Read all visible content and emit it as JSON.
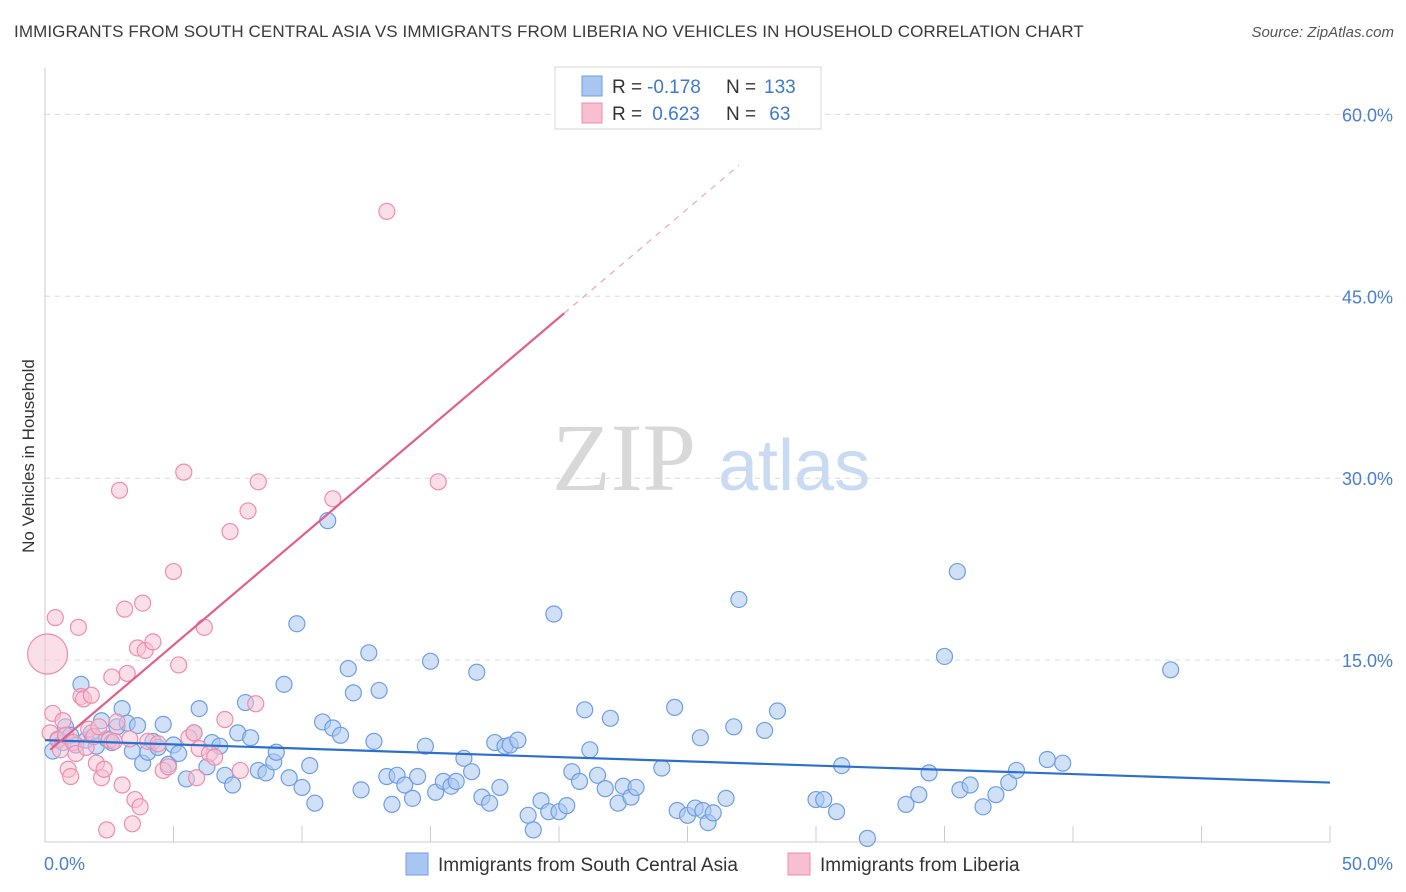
{
  "title": "IMMIGRANTS FROM SOUTH CENTRAL ASIA VS IMMIGRANTS FROM LIBERIA NO VEHICLES IN HOUSEHOLD CORRELATION CHART",
  "source": "Source: ZipAtlas.com",
  "watermark": {
    "zip": "ZIP",
    "atlas": "atlas"
  },
  "legend_top": [
    {
      "r_label": "R = ",
      "r_value": "-0.178",
      "n_label": "N = ",
      "n_value": "133"
    },
    {
      "r_label": "R = ",
      "r_value": " 0.623",
      "n_label": "N = ",
      "n_value": " 63"
    }
  ],
  "colors": {
    "blue": "#6d9ee6",
    "blue_fill": "#a9c6f0",
    "blue_line": "#2d6fce",
    "pink": "#f08cab",
    "pink_fill": "#f7bfd1",
    "pink_line": "#e0608a"
  },
  "chart_data": {
    "type": "scatter",
    "title": "IMMIGRANTS FROM SOUTH CENTRAL ASIA VS IMMIGRANTS FROM LIBERIA NO VEHICLES IN HOUSEHOLD CORRELATION CHART",
    "xlabel": "",
    "ylabel": "No Vehicles in Household",
    "xlim": [
      0,
      50
    ],
    "ylim": [
      0,
      63
    ],
    "x_tick_labels": [
      "0.0%",
      "50.0%"
    ],
    "y_ticks": [
      15,
      30,
      45,
      60
    ],
    "y_tick_labels": [
      "15.0%",
      "30.0%",
      "45.0%",
      "60.0%"
    ],
    "grid": true,
    "legend_placement": "top-center",
    "series": [
      {
        "name": "Immigrants from South Central Asia",
        "color": "#6d9ee6",
        "trend": {
          "x": [
            0,
            50
          ],
          "y": [
            8.4,
            4.9
          ]
        },
        "points": [
          [
            0.3,
            7.5
          ],
          [
            0.5,
            8.5
          ],
          [
            0.7,
            8.2
          ],
          [
            0.8,
            9.5
          ],
          [
            1.0,
            8.8
          ],
          [
            1.2,
            8.0
          ],
          [
            1.4,
            13.0
          ],
          [
            1.6,
            8.4
          ],
          [
            1.8,
            9.0
          ],
          [
            2.0,
            7.9
          ],
          [
            2.2,
            10.0
          ],
          [
            2.4,
            8.5
          ],
          [
            2.6,
            8.2
          ],
          [
            2.8,
            9.5
          ],
          [
            3.0,
            11.0
          ],
          [
            3.2,
            9.8
          ],
          [
            3.4,
            7.5
          ],
          [
            3.6,
            9.6
          ],
          [
            3.8,
            6.5
          ],
          [
            4.0,
            7.4
          ],
          [
            4.2,
            8.3
          ],
          [
            4.4,
            7.8
          ],
          [
            4.6,
            9.7
          ],
          [
            4.8,
            6.4
          ],
          [
            5.0,
            8.0
          ],
          [
            5.2,
            7.3
          ],
          [
            5.5,
            5.2
          ],
          [
            5.8,
            9.0
          ],
          [
            6.0,
            11.0
          ],
          [
            6.3,
            6.2
          ],
          [
            6.5,
            8.2
          ],
          [
            6.8,
            7.9
          ],
          [
            7.0,
            5.5
          ],
          [
            7.3,
            4.7
          ],
          [
            7.5,
            9.0
          ],
          [
            7.8,
            11.5
          ],
          [
            8.0,
            8.6
          ],
          [
            8.3,
            5.9
          ],
          [
            8.6,
            5.7
          ],
          [
            8.9,
            6.6
          ],
          [
            9.0,
            7.4
          ],
          [
            9.3,
            13.0
          ],
          [
            9.5,
            5.3
          ],
          [
            9.8,
            18.0
          ],
          [
            10.0,
            4.5
          ],
          [
            10.3,
            6.3
          ],
          [
            10.5,
            3.2
          ],
          [
            10.8,
            9.9
          ],
          [
            11.0,
            26.5
          ],
          [
            11.2,
            9.4
          ],
          [
            11.5,
            8.8
          ],
          [
            11.8,
            14.3
          ],
          [
            12.0,
            12.3
          ],
          [
            12.3,
            4.3
          ],
          [
            12.6,
            15.6
          ],
          [
            12.8,
            8.3
          ],
          [
            13.0,
            12.5
          ],
          [
            13.3,
            5.4
          ],
          [
            13.5,
            3.1
          ],
          [
            13.7,
            5.5
          ],
          [
            14.0,
            4.7
          ],
          [
            14.3,
            3.6
          ],
          [
            14.5,
            5.4
          ],
          [
            14.8,
            7.9
          ],
          [
            15.0,
            14.9
          ],
          [
            15.2,
            4.1
          ],
          [
            15.5,
            5.0
          ],
          [
            15.8,
            4.6
          ],
          [
            16.0,
            5.0
          ],
          [
            16.3,
            6.9
          ],
          [
            16.6,
            5.8
          ],
          [
            16.8,
            14.0
          ],
          [
            17.0,
            3.7
          ],
          [
            17.3,
            3.2
          ],
          [
            17.5,
            8.2
          ],
          [
            17.7,
            4.5
          ],
          [
            17.9,
            7.9
          ],
          [
            18.1,
            8.0
          ],
          [
            18.4,
            8.4
          ],
          [
            18.8,
            2.2
          ],
          [
            19.0,
            1.0
          ],
          [
            19.3,
            3.4
          ],
          [
            19.6,
            2.5
          ],
          [
            19.8,
            18.8
          ],
          [
            20.0,
            2.5
          ],
          [
            20.3,
            3.0
          ],
          [
            20.5,
            5.8
          ],
          [
            20.8,
            5.0
          ],
          [
            21.0,
            10.9
          ],
          [
            21.2,
            7.6
          ],
          [
            21.5,
            5.5
          ],
          [
            21.8,
            4.4
          ],
          [
            22.0,
            10.2
          ],
          [
            22.3,
            3.2
          ],
          [
            22.5,
            4.6
          ],
          [
            22.8,
            3.7
          ],
          [
            23.0,
            4.5
          ],
          [
            24.0,
            6.1
          ],
          [
            24.5,
            11.1
          ],
          [
            24.6,
            2.6
          ],
          [
            25.0,
            2.2
          ],
          [
            25.3,
            2.8
          ],
          [
            25.5,
            8.6
          ],
          [
            25.6,
            2.6
          ],
          [
            25.8,
            1.6
          ],
          [
            26.0,
            2.4
          ],
          [
            26.5,
            3.6
          ],
          [
            26.8,
            9.5
          ],
          [
            27.0,
            20.0
          ],
          [
            28.0,
            9.2
          ],
          [
            28.5,
            10.8
          ],
          [
            30.0,
            3.5
          ],
          [
            30.3,
            3.5
          ],
          [
            30.8,
            2.5
          ],
          [
            31.0,
            6.3
          ],
          [
            32.0,
            0.3
          ],
          [
            33.5,
            3.1
          ],
          [
            34.0,
            3.9
          ],
          [
            34.4,
            5.7
          ],
          [
            35.0,
            15.3
          ],
          [
            35.5,
            22.3
          ],
          [
            35.6,
            4.3
          ],
          [
            36.0,
            4.7
          ],
          [
            36.5,
            2.9
          ],
          [
            37.0,
            3.9
          ],
          [
            37.5,
            4.9
          ],
          [
            37.8,
            5.9
          ],
          [
            39.0,
            6.8
          ],
          [
            39.6,
            6.5
          ],
          [
            43.8,
            14.2
          ]
        ]
      },
      {
        "name": "Immigrants from Liberia",
        "color": "#f08cab",
        "trend": {
          "x": [
            0.2,
            20.2
          ],
          "y": [
            7.6,
            43.6
          ]
        },
        "trend_dashed": {
          "x": [
            20.2,
            27.0
          ],
          "y": [
            43.6,
            55.8
          ]
        },
        "points": [
          [
            0.1,
            15.5
          ],
          [
            0.2,
            9.0
          ],
          [
            0.3,
            10.6
          ],
          [
            0.4,
            18.5
          ],
          [
            0.5,
            8.4
          ],
          [
            0.6,
            7.6
          ],
          [
            0.7,
            10.0
          ],
          [
            0.8,
            8.8
          ],
          [
            0.9,
            6.0
          ],
          [
            1.0,
            5.4
          ],
          [
            1.1,
            8.2
          ],
          [
            1.2,
            7.3
          ],
          [
            1.3,
            17.7
          ],
          [
            1.4,
            12.0
          ],
          [
            1.5,
            11.8
          ],
          [
            1.6,
            7.8
          ],
          [
            1.7,
            9.3
          ],
          [
            1.8,
            12.1
          ],
          [
            1.9,
            8.7
          ],
          [
            2.0,
            6.5
          ],
          [
            2.1,
            9.5
          ],
          [
            2.2,
            5.3
          ],
          [
            2.3,
            6.0
          ],
          [
            2.4,
            1.0
          ],
          [
            2.5,
            8.4
          ],
          [
            2.6,
            13.6
          ],
          [
            2.7,
            8.3
          ],
          [
            2.8,
            9.9
          ],
          [
            2.9,
            29.0
          ],
          [
            3.0,
            4.7
          ],
          [
            3.1,
            19.2
          ],
          [
            3.2,
            13.9
          ],
          [
            3.3,
            8.5
          ],
          [
            3.4,
            1.5
          ],
          [
            3.5,
            3.5
          ],
          [
            3.6,
            16.0
          ],
          [
            3.7,
            2.9
          ],
          [
            3.8,
            19.7
          ],
          [
            3.9,
            15.8
          ],
          [
            4.0,
            8.3
          ],
          [
            4.2,
            16.5
          ],
          [
            4.4,
            8.1
          ],
          [
            4.6,
            5.9
          ],
          [
            4.8,
            6.2
          ],
          [
            5.0,
            22.3
          ],
          [
            5.2,
            14.6
          ],
          [
            5.4,
            30.5
          ],
          [
            5.6,
            8.6
          ],
          [
            5.8,
            9.0
          ],
          [
            5.9,
            5.3
          ],
          [
            6.0,
            7.7
          ],
          [
            6.2,
            17.7
          ],
          [
            6.4,
            7.3
          ],
          [
            6.6,
            7.0
          ],
          [
            7.0,
            10.1
          ],
          [
            7.2,
            25.6
          ],
          [
            7.6,
            5.9
          ],
          [
            7.9,
            27.3
          ],
          [
            8.2,
            11.4
          ],
          [
            8.3,
            29.7
          ],
          [
            11.2,
            28.3
          ],
          [
            13.3,
            52.0
          ],
          [
            15.3,
            29.7
          ]
        ]
      }
    ]
  }
}
